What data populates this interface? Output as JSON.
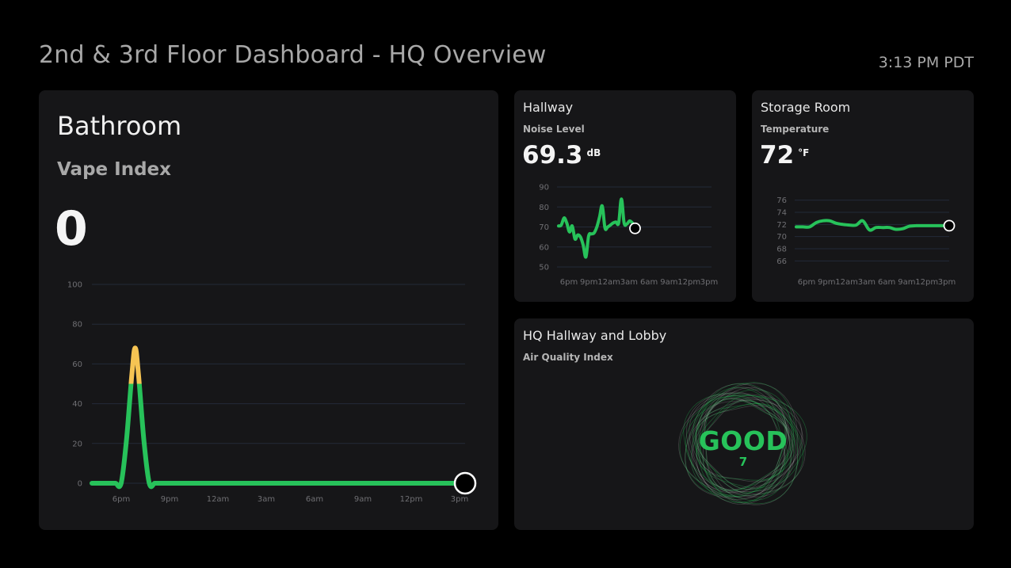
{
  "header": {
    "title": "2nd & 3rd Floor Dashboard - HQ Overview",
    "time": "3:13 PM PDT"
  },
  "bathroom": {
    "title": "Bathroom",
    "metric": "Vape Index",
    "value": "0",
    "chart_data": {
      "type": "line",
      "x_ticks": [
        "6pm",
        "9pm",
        "12am",
        "3am",
        "6am",
        "9am",
        "12pm",
        "3pm"
      ],
      "y_ticks": [
        0,
        20,
        40,
        60,
        80,
        100
      ],
      "ylim": [
        0,
        100
      ],
      "threshold": 50,
      "colors": {
        "normal": "#27c25a",
        "elevated": "#f6c453"
      },
      "series": [
        {
          "x": [
            5,
            6.9,
            7.2,
            7.7,
            8.2,
            8.7,
            9.0,
            9.3,
            9.8,
            10.3,
            10.8,
            11.1,
            14,
            17,
            20,
            23,
            26,
            29,
            32,
            35,
            38,
            39.5
          ],
          "y": [
            0,
            0,
            0,
            0,
            22,
            55,
            68,
            55,
            22,
            0,
            0,
            0,
            0,
            0,
            0,
            0,
            0,
            0,
            0,
            0,
            0,
            0
          ]
        }
      ]
    }
  },
  "hallway": {
    "title": "Hallway",
    "metric": "Noise Level",
    "value": "69.3",
    "unit": "dB",
    "chart_data": {
      "type": "line",
      "x_ticks": [
        "6pm",
        "9pm",
        "12am",
        "3am",
        "6am",
        "9am",
        "12pm",
        "3pm"
      ],
      "y_ticks": [
        50,
        60,
        70,
        80,
        90
      ],
      "ylim": [
        50,
        90
      ],
      "color": "#27c25a",
      "series": [
        {
          "x": [
            0,
            0.5,
            1,
            1.5,
            2,
            2.5,
            3,
            3.5,
            4,
            4.5,
            5,
            5.5,
            6,
            6.5,
            7,
            7.5,
            8,
            8.5,
            9,
            9.5,
            10,
            10.5,
            11,
            11.5,
            12,
            12.5,
            13,
            13.5,
            14,
            14.5,
            15,
            15.5,
            16,
            16.5,
            17,
            17.5,
            18,
            18.5,
            19,
            19.5,
            20,
            20.5,
            21,
            21.5,
            22,
            22.5,
            23
          ],
          "y": [
            70.5,
            71,
            74.5,
            72,
            67.5,
            70.5,
            64,
            66,
            65,
            61,
            55,
            65.5,
            66.5,
            67,
            70,
            75,
            80.5,
            69.5,
            70,
            71,
            72,
            72.5,
            72,
            84,
            72,
            71.5,
            73,
            72,
            69.3,
            69.3,
            69.3,
            69.3,
            69.3,
            69.3,
            69.3,
            69.3,
            69.3,
            69.3,
            69.3,
            69.3,
            69.3,
            69.3,
            69.3,
            69.3,
            69.3,
            69.3,
            69.3
          ]
        }
      ]
    }
  },
  "storage": {
    "title": "Storage Room",
    "metric": "Temperature",
    "value": "72",
    "unit": "°F",
    "chart_data": {
      "type": "line",
      "x_ticks": [
        "6pm",
        "9pm",
        "12am",
        "3am",
        "6am",
        "9am",
        "12pm",
        "3pm"
      ],
      "y_ticks": [
        66,
        68,
        70,
        72,
        74,
        76
      ],
      "ylim": [
        65,
        77
      ],
      "color": "#27c25a",
      "series": [
        {
          "x": [
            0,
            1,
            2,
            3,
            4,
            5,
            6,
            7,
            8,
            9,
            10,
            11,
            12,
            13,
            14,
            15,
            16,
            17,
            18,
            19,
            20,
            21,
            22,
            23
          ],
          "y": [
            71.6,
            71.6,
            71.6,
            72.3,
            72.6,
            72.6,
            72.2,
            72.0,
            71.9,
            71.9,
            72.6,
            71.1,
            71.5,
            71.5,
            71.5,
            71.2,
            71.3,
            71.7,
            71.8,
            71.8,
            71.8,
            71.8,
            71.8,
            71.8
          ]
        }
      ]
    }
  },
  "hq": {
    "title": "HQ Hallway and Lobby",
    "metric": "Air Quality Index",
    "status": "GOOD",
    "value": "7",
    "color": "#27c25a"
  }
}
